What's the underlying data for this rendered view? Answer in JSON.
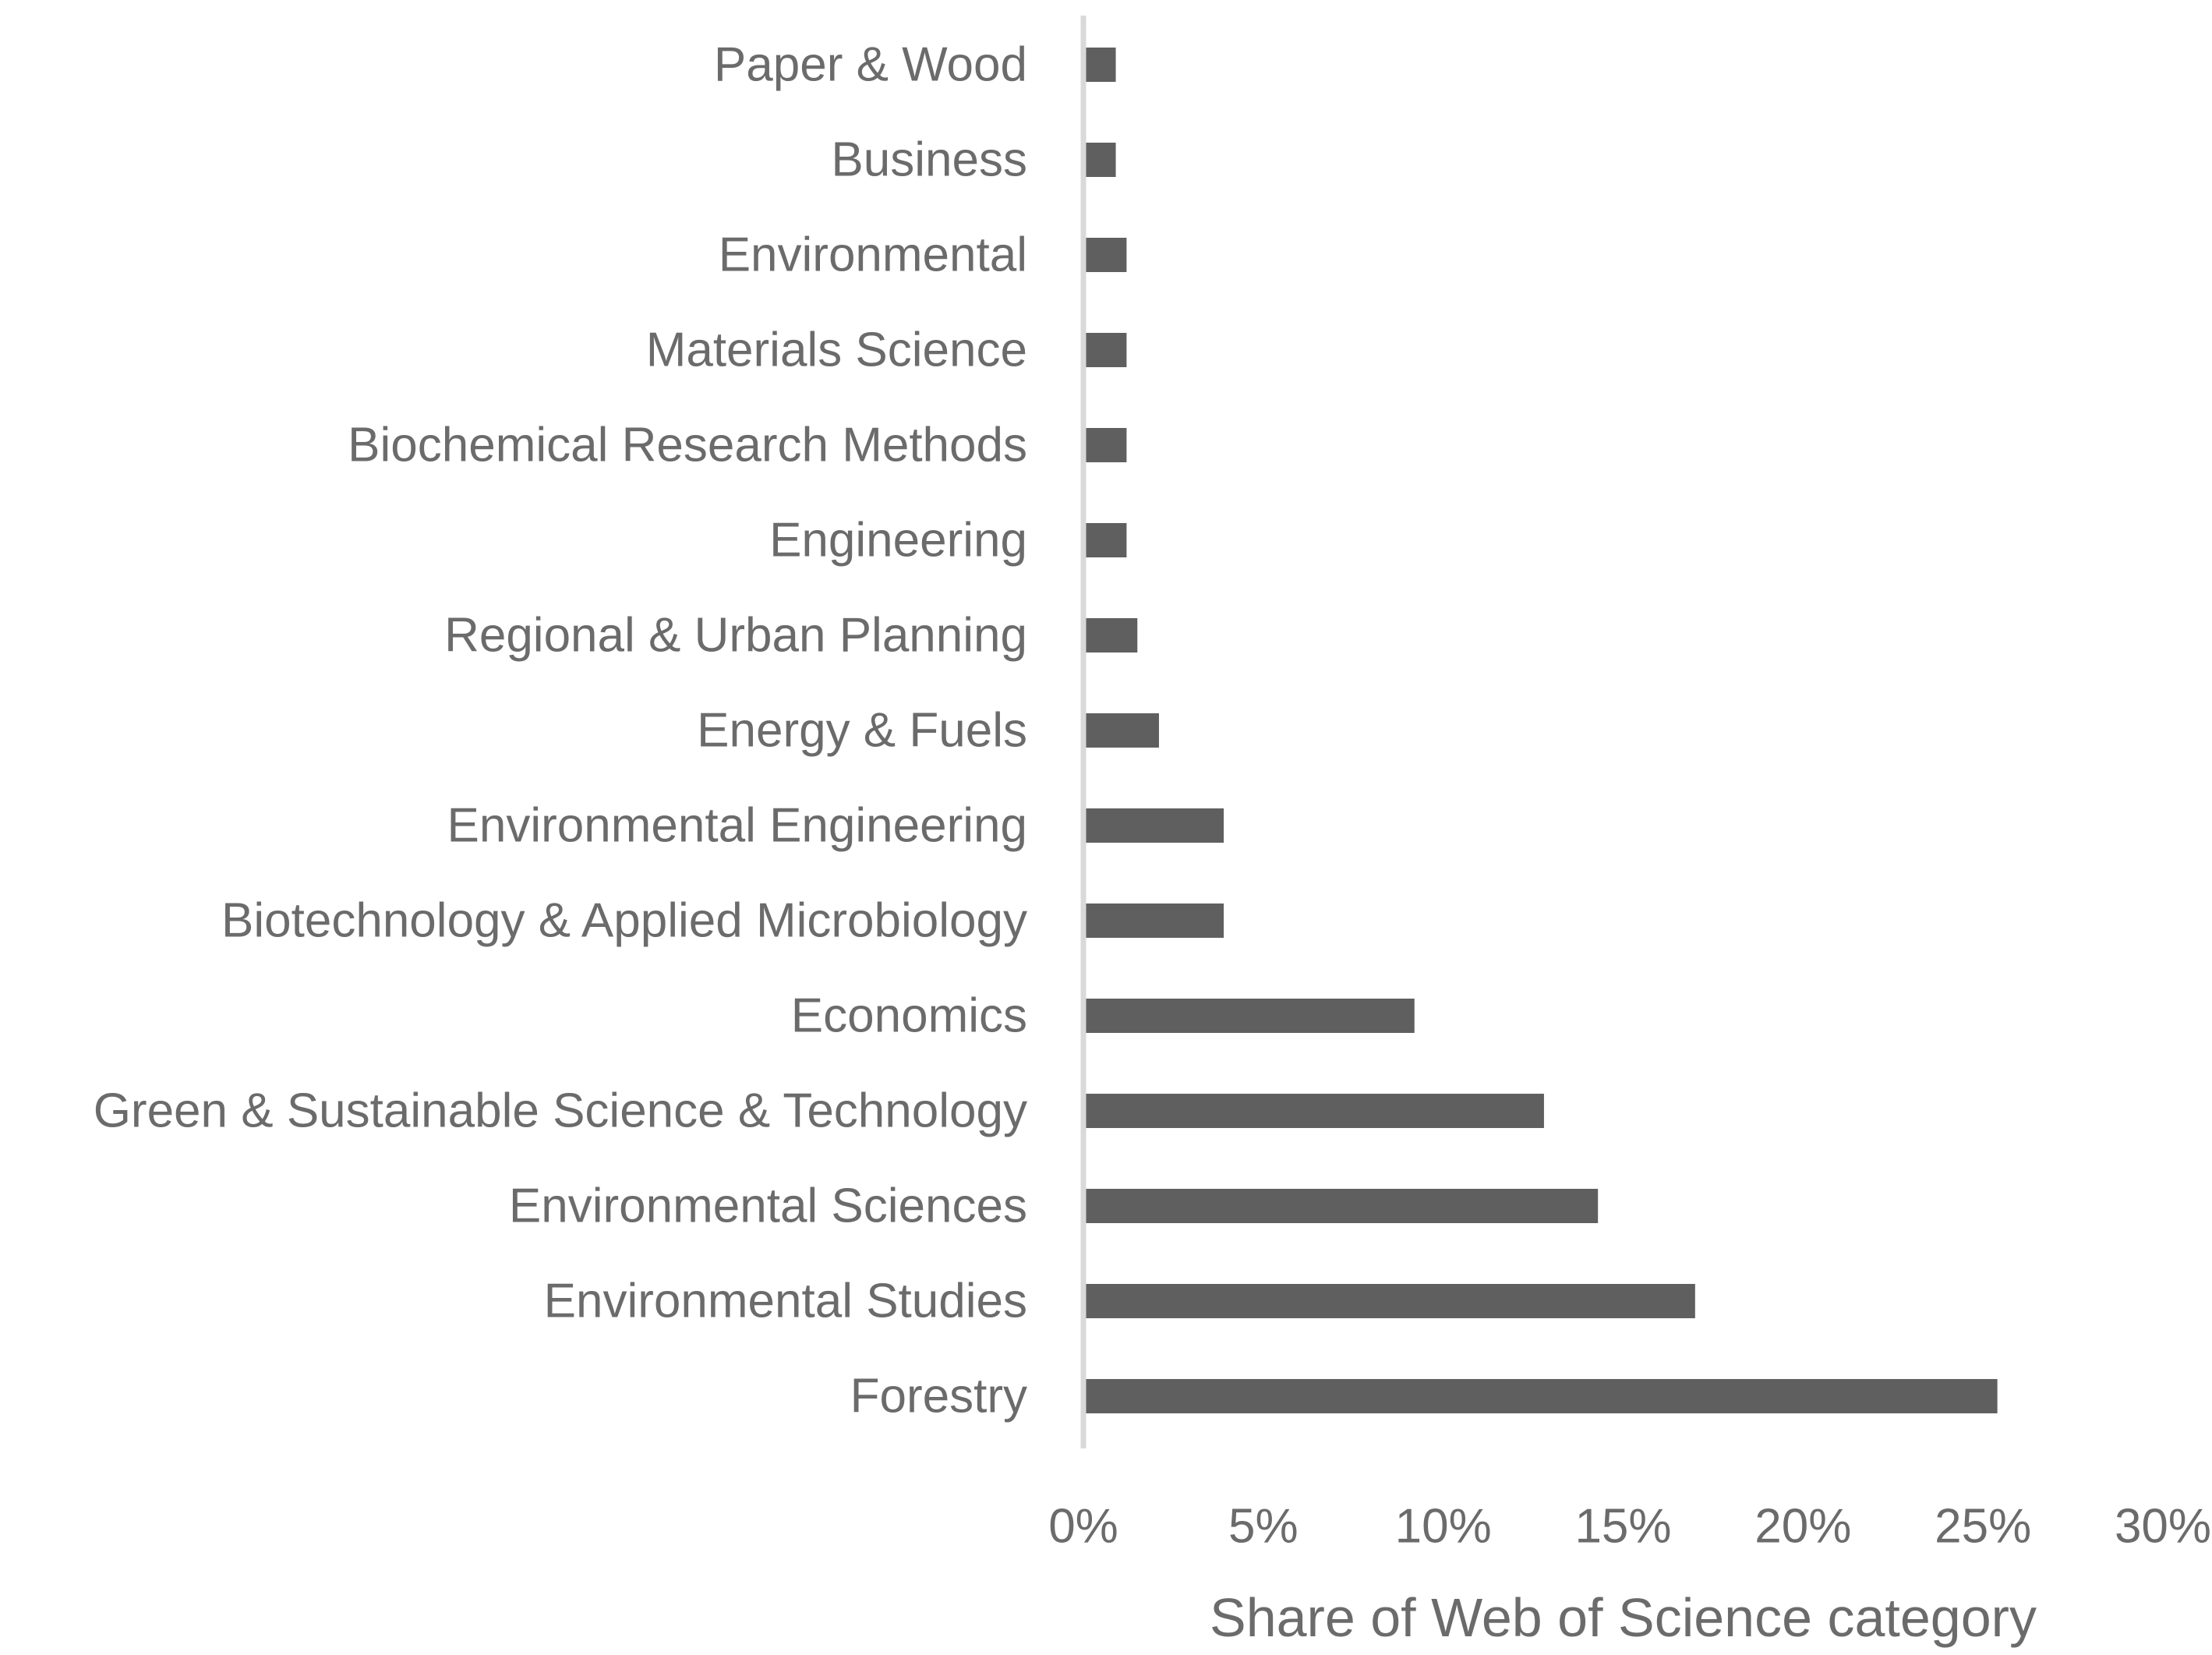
{
  "chart_data": {
    "type": "bar",
    "orientation": "horizontal",
    "categories": [
      "Paper & Wood",
      "Business",
      "Environmental",
      "Materials Science",
      "Biochemical Research Methods",
      "Engineering",
      "Regional & Urban Planning",
      "Energy & Fuels",
      "Environmental Engineering",
      "Biotechnology & Applied Microbiology",
      "Economics",
      "Green & Sustainable Science & Technology",
      "Environmental Sciences",
      "Environmental Studies",
      "Forestry"
    ],
    "values": [
      0.009,
      0.009,
      0.012,
      0.012,
      0.012,
      0.012,
      0.015,
      0.021,
      0.039,
      0.039,
      0.092,
      0.128,
      0.143,
      0.17,
      0.254
    ],
    "xlabel": "Share of Web of Science category",
    "ylabel": "",
    "xlim": [
      0,
      0.3
    ],
    "xticks": [
      0,
      0.05,
      0.1,
      0.15,
      0.2,
      0.25,
      0.3
    ],
    "xtick_labels": [
      "0%",
      "5%",
      "10%",
      "15%",
      "20%",
      "25%",
      "30%"
    ],
    "grid": false,
    "legend": "none",
    "bar_color": "#5f5f5f",
    "axis_color": "#d9d9d9",
    "text_color": "#6b6b6b"
  }
}
